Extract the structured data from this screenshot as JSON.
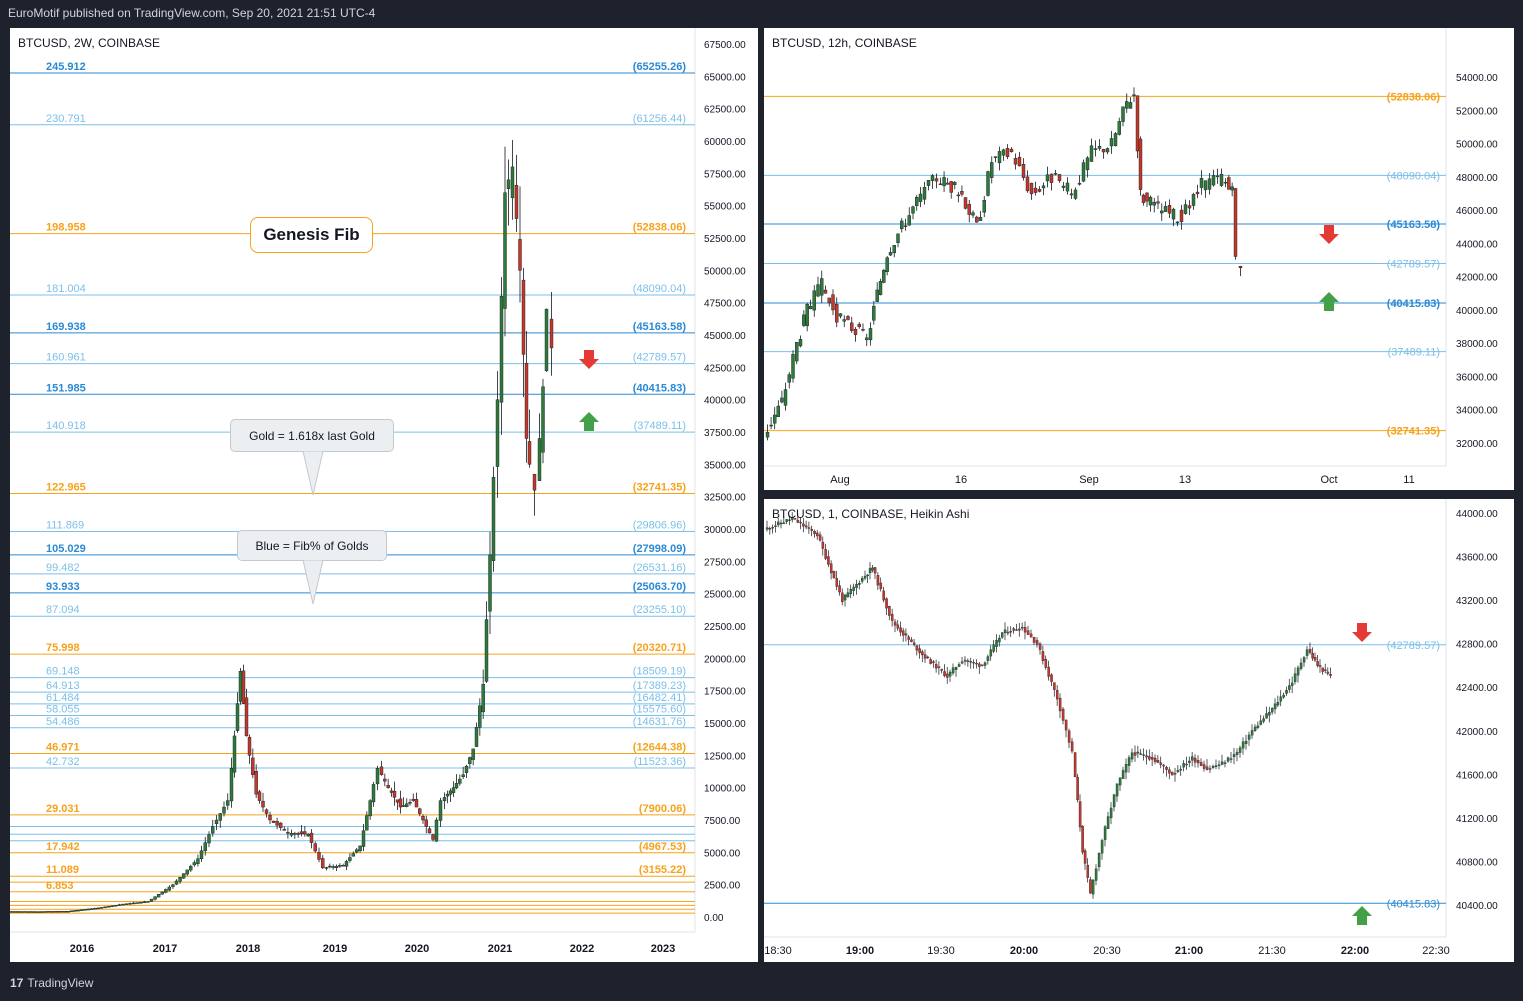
{
  "header": {
    "published": "EuroMotif published on TradingView.com, Sep 20, 2021 21:51 UTC-4"
  },
  "footer": {
    "brand": "TradingView",
    "logo_icon": "tradingview-logo-icon"
  },
  "colors": {
    "gold": "#f7a21b",
    "blue_strong": "#2a8ad4",
    "blue_light": "#7cbfe8",
    "bull": "#2f7a3a",
    "bear": "#c0392b",
    "arrow_up": "#43a047",
    "arrow_down": "#e53935"
  },
  "left_chart": {
    "title": "BTCUSD, 2W, COINBASE",
    "annotation_genesis": "Genesis Fib",
    "annotation_gold": "Gold = 1.618x last Gold",
    "annotation_blue": "Blue = Fib% of Golds",
    "y_ticks": [
      "67500.00",
      "65000.00",
      "62500.00",
      "60000.00",
      "57500.00",
      "55000.00",
      "52500.00",
      "50000.00",
      "47500.00",
      "45000.00",
      "42500.00",
      "40000.00",
      "37500.00",
      "35000.00",
      "32500.00",
      "30000.00",
      "27500.00",
      "25000.00",
      "22500.00",
      "20000.00",
      "17500.00",
      "15000.00",
      "12500.00",
      "10000.00",
      "7500.00",
      "5000.00",
      "2500.00",
      "0.00"
    ],
    "x_ticks": [
      "2016",
      "2017",
      "2018",
      "2019",
      "2020",
      "2021",
      "2022",
      "2023"
    ],
    "levels": [
      {
        "ratio": "245.912",
        "price": "(65255.26)",
        "kind": "blue_strong"
      },
      {
        "ratio": "230.791",
        "price": "(61256.44)",
        "kind": "blue_light"
      },
      {
        "ratio": "198.958",
        "price": "(52838.06)",
        "kind": "gold"
      },
      {
        "ratio": "181.004",
        "price": "(48090.04)",
        "kind": "blue_light"
      },
      {
        "ratio": "169.938",
        "price": "(45163.58)",
        "kind": "blue_strong"
      },
      {
        "ratio": "160.961",
        "price": "(42789.57)",
        "kind": "blue_light"
      },
      {
        "ratio": "151.985",
        "price": "(40415.83)",
        "kind": "blue_strong"
      },
      {
        "ratio": "140.918",
        "price": "(37489.11)",
        "kind": "blue_light"
      },
      {
        "ratio": "122.965",
        "price": "(32741.35)",
        "kind": "gold"
      },
      {
        "ratio": "111.869",
        "price": "(29806.96)",
        "kind": "blue_light"
      },
      {
        "ratio": "105.029",
        "price": "(27998.09)",
        "kind": "blue_strong"
      },
      {
        "ratio": "99.482",
        "price": "(26531.16)",
        "kind": "blue_light"
      },
      {
        "ratio": "93.933",
        "price": "(25063.70)",
        "kind": "blue_strong"
      },
      {
        "ratio": "87.094",
        "price": "(23255.10)",
        "kind": "blue_light"
      },
      {
        "ratio": "75.998",
        "price": "(20320.71)",
        "kind": "gold"
      },
      {
        "ratio": "69.148",
        "price": "(18509.19)",
        "kind": "blue_light"
      },
      {
        "ratio": "64.913",
        "price": "(17389.23)",
        "kind": "blue_light"
      },
      {
        "ratio": "61.484",
        "price": "(16482.41)",
        "kind": "blue_light"
      },
      {
        "ratio": "58.055",
        "price": "(15575.60)",
        "kind": "blue_light"
      },
      {
        "ratio": "54.486",
        "price": "(14631.76)",
        "kind": "blue_light"
      },
      {
        "ratio": "46.971",
        "price": "(12644.38)",
        "kind": "gold"
      },
      {
        "ratio": "42.732",
        "price": "(11523.36)",
        "kind": "blue_light"
      },
      {
        "ratio": "29.031",
        "price": "(7900.06)",
        "kind": "gold"
      },
      {
        "ratio": "17.942",
        "price": "(4967.53)",
        "kind": "gold"
      },
      {
        "ratio": "11.089",
        "price": "(3155.22)",
        "kind": "gold"
      },
      {
        "ratio": "6.853",
        "price": "",
        "kind": "gold"
      }
    ]
  },
  "top_right_chart": {
    "title": "BTCUSD, 12h, COINBASE",
    "y_ticks": [
      "54000.00",
      "52000.00",
      "50000.00",
      "48000.00",
      "46000.00",
      "44000.00",
      "42000.00",
      "40000.00",
      "38000.00",
      "36000.00",
      "34000.00",
      "32000.00"
    ],
    "x_ticks": [
      "Aug",
      "16",
      "Sep",
      "13",
      "Oct",
      "11"
    ],
    "levels": [
      {
        "price": "(52838.06)",
        "kind": "gold"
      },
      {
        "price": "(48090.04)",
        "kind": "blue_light"
      },
      {
        "price": "(45163.58)",
        "kind": "blue_strong"
      },
      {
        "price": "(42789.57)",
        "kind": "blue_light"
      },
      {
        "price": "(40415.83)",
        "kind": "blue_strong"
      },
      {
        "price": "(37489.11)",
        "kind": "blue_light"
      },
      {
        "price": "(32741.35)",
        "kind": "gold"
      }
    ]
  },
  "bottom_right_chart": {
    "title": "BTCUSD, 1, COINBASE, Heikin Ashi",
    "y_ticks": [
      "44000.00",
      "43600.00",
      "43200.00",
      "42800.00",
      "42400.00",
      "42000.00",
      "41600.00",
      "41200.00",
      "40800.00",
      "40400.00"
    ],
    "x_ticks": [
      "18:30",
      "19:00",
      "19:30",
      "20:00",
      "20:30",
      "21:00",
      "21:30",
      "22:00",
      "22:30"
    ],
    "levels": [
      {
        "price": "(42789.57)",
        "kind": "blue_light"
      },
      {
        "price": "(40415.83)",
        "kind": "blue_strong"
      }
    ]
  }
}
